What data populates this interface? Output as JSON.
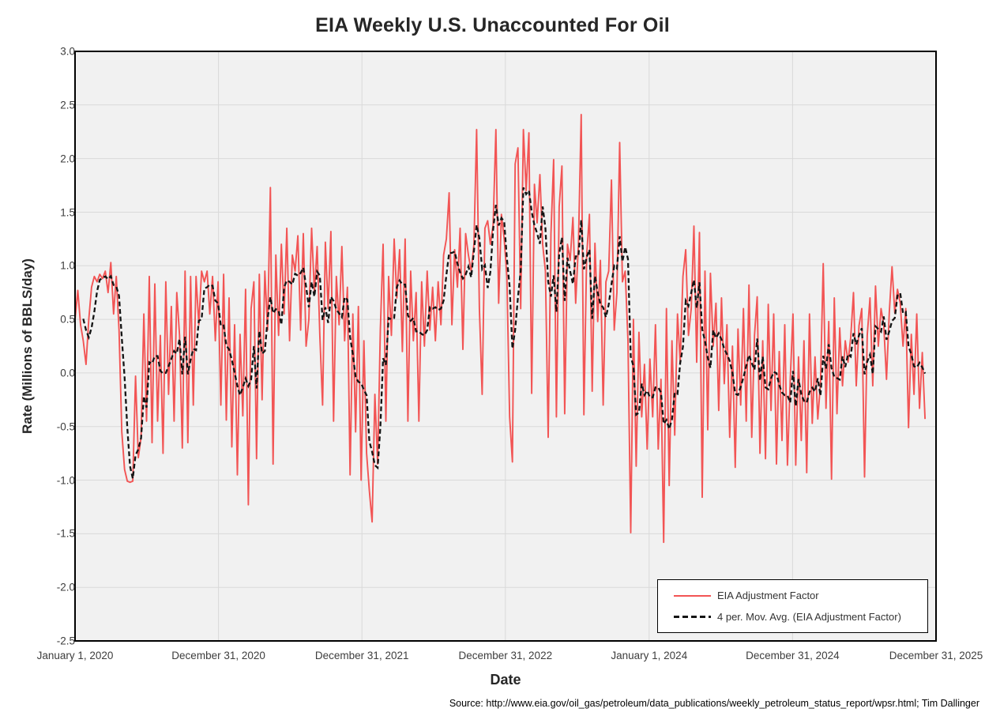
{
  "title": "EIA Weekly U.S. Unaccounted For Oil",
  "axes": {
    "x_label": "Date",
    "y_label": "Rate (Millions of BBLS/day)",
    "y_tick_labels": [
      "3.0",
      "2.5",
      "2.0",
      "1.5",
      "1.0",
      "0.5",
      "0.0",
      "-0.5",
      "-1.0",
      "-1.5",
      "-2.0",
      "-2.5"
    ],
    "x_tick_labels": [
      "January 1, 2020",
      "December 31, 2020",
      "December 31, 2021",
      "December 31, 2022",
      "January 1, 2024",
      "December 31, 2024",
      "December 31, 2025"
    ]
  },
  "legend": {
    "items": [
      {
        "label": "EIA Adjustment Factor",
        "style": "solid-red"
      },
      {
        "label": "4 per. Mov. Avg. (EIA Adjustment Factor)",
        "style": "dashed-black"
      }
    ]
  },
  "source": "Source: http://www.eia.gov/oil_gas/petroleum/data_publications/weekly_petroleum_status_report/wpsr.html; Tim Dallinger",
  "colors": {
    "series_red": "#f25454",
    "series_ma": "#141414",
    "plot_background": "#f1f1f1",
    "gridline": "#d9d9d9",
    "plot_border": "#000000",
    "text": "#262626"
  },
  "chart_data": {
    "type": "line",
    "title": "EIA Weekly U.S. Unaccounted For Oil",
    "xlabel": "Date",
    "ylabel": "Rate (Millions of BBLS/day)",
    "ylim": [
      -2.5,
      3.0
    ],
    "y_tick_step": 0.5,
    "grid": true,
    "legend_position": "inside-bottom-right",
    "x_start": "2020-01-01",
    "x_interval_days": 7,
    "x_axis_max_days": 2191,
    "x_tick_days": [
      0,
      365,
      730,
      1095,
      1461,
      1826,
      2191
    ],
    "x_tick_labels": [
      "January 1, 2020",
      "December 31, 2020",
      "December 31, 2021",
      "December 31, 2022",
      "January 1, 2024",
      "December 31, 2024",
      "December 31, 2025"
    ],
    "series": [
      {
        "name": "EIA Adjustment Factor",
        "color": "#f25454",
        "style": "solid",
        "values": [
          0.5,
          0.77,
          0.45,
          0.3,
          0.08,
          0.5,
          0.8,
          0.9,
          0.85,
          0.92,
          0.88,
          0.95,
          0.75,
          1.03,
          0.55,
          0.9,
          0.4,
          -0.55,
          -0.9,
          -1.01,
          -1.02,
          -1.01,
          -0.03,
          -0.79,
          -0.6,
          0.55,
          -0.45,
          0.9,
          -0.65,
          0.83,
          -0.45,
          0.35,
          -0.75,
          0.85,
          -0.2,
          0.62,
          -0.45,
          0.75,
          0.35,
          -0.7,
          0.95,
          -0.65,
          0.9,
          -0.3,
          0.9,
          0.45,
          0.95,
          0.85,
          0.95,
          0.55,
          0.9,
          0.3,
          0.85,
          -0.3,
          0.92,
          -0.44,
          0.7,
          -0.69,
          0.45,
          -0.95,
          0.36,
          -0.4,
          0.78,
          -1.23,
          0.6,
          0.85,
          -0.8,
          0.92,
          -0.25,
          0.95,
          0.4,
          1.73,
          -0.85,
          1.1,
          0.35,
          1.2,
          0.55,
          1.35,
          0.3,
          1.1,
          0.95,
          1.28,
          0.4,
          1.3,
          0.25,
          0.5,
          1.35,
          0.75,
          1.18,
          0.35,
          -0.3,
          1.22,
          0.6,
          1.32,
          -0.45,
          0.9,
          0.45,
          1.18,
          0.3,
          0.8,
          -0.95,
          0.55,
          -0.55,
          0.62,
          -1.0,
          0.3,
          -0.75,
          -1.1,
          -1.39,
          -0.2,
          -0.85,
          0.4,
          1.2,
          -0.45,
          0.9,
          0.35,
          1.25,
          0.7,
          1.15,
          0.2,
          1.25,
          -0.45,
          0.95,
          0.3,
          0.75,
          -0.45,
          0.85,
          0.25,
          0.95,
          0.4,
          0.8,
          0.3,
          0.85,
          0.45,
          1.1,
          1.25,
          1.68,
          0.45,
          1.15,
          0.8,
          1.35,
          0.22,
          1.3,
          1.1,
          0.95,
          1.2,
          2.27,
          0.6,
          -0.2,
          1.35,
          1.42,
          1.2,
          1.38,
          2.27,
          0.65,
          1.48,
          1.25,
          0.9,
          -0.41,
          -0.83,
          1.95,
          2.1,
          0.6,
          2.27,
          1.7,
          2.24,
          -0.19,
          1.76,
          1.4,
          1.85,
          1.2,
          0.95,
          -0.6,
          1.3,
          1.99,
          -0.41,
          1.55,
          1.93,
          -0.38,
          1.2,
          1.05,
          1.45,
          0.65,
          1.2,
          2.41,
          -0.39,
          1.1,
          1.48,
          -0.17,
          1.21,
          0.48,
          1.05,
          -0.3,
          0.85,
          0.95,
          1.8,
          0.4,
          0.75,
          2.15,
          0.85,
          0.95,
          0.3,
          -1.49,
          0.5,
          -0.87,
          0.38,
          -0.41,
          0.08,
          -0.71,
          0.13,
          -0.41,
          0.45,
          -0.71,
          -0.06,
          -1.58,
          0.6,
          -1.05,
          0.3,
          -0.58,
          0.55,
          0.1,
          0.9,
          1.15,
          0.35,
          0.6,
          1.37,
          0.1,
          1.31,
          -1.16,
          0.95,
          -0.53,
          0.93,
          0.25,
          0.65,
          -0.35,
          0.7,
          -0.1,
          0.45,
          -0.6,
          0.25,
          -0.88,
          0.41,
          -0.3,
          0.6,
          -0.45,
          0.82,
          -0.6,
          0.35,
          0.71,
          -0.75,
          0.3,
          -0.8,
          0.64,
          -0.35,
          0.55,
          -0.85,
          0.2,
          -0.63,
          0.45,
          -0.86,
          -0.07,
          0.55,
          -0.86,
          0.15,
          -0.63,
          0.3,
          -0.93,
          0.55,
          -0.47,
          0.15,
          -0.43,
          -0.1,
          1.02,
          -0.33,
          0.48,
          -0.99,
          0.7,
          -0.38,
          0.42,
          -0.12,
          0.3,
          0.1,
          0.33,
          0.75,
          -0.12,
          0.44,
          0.6,
          -0.97,
          0.35,
          0.7,
          -0.12,
          0.81,
          0.25,
          0.6,
          0.45,
          -0.06,
          0.56,
          0.99,
          0.56,
          0.78,
          0.65,
          0.25,
          0.6,
          -0.51,
          0.36,
          -0.2,
          0.55,
          -0.33,
          0.19,
          -0.43
        ]
      },
      {
        "name": "4 per. Mov. Avg. (EIA Adjustment Factor)",
        "color": "#141414",
        "style": "dashed",
        "derived": "4-period trailing moving average of EIA Adjustment Factor"
      }
    ]
  }
}
